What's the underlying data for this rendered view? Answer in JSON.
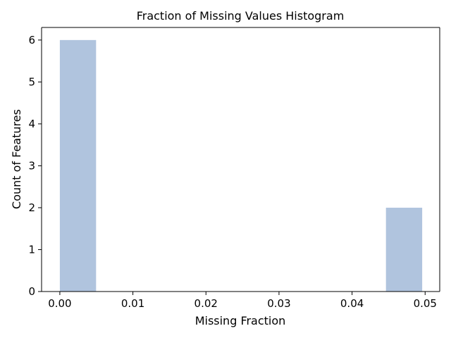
{
  "chart_data": {
    "type": "bar",
    "title": "Fraction of Missing Values Histogram",
    "xlabel": "Missing Fraction",
    "ylabel": "Count of Features",
    "xlim": [
      -0.0025,
      0.052
    ],
    "ylim": [
      0,
      6.3
    ],
    "xticks": [
      "0.00",
      "0.01",
      "0.02",
      "0.03",
      "0.04",
      "0.05"
    ],
    "xtick_values": [
      0.0,
      0.01,
      0.02,
      0.03,
      0.04,
      0.05
    ],
    "yticks": [
      "0",
      "1",
      "2",
      "3",
      "4",
      "5",
      "6"
    ],
    "ytick_values": [
      0,
      1,
      2,
      3,
      4,
      5,
      6
    ],
    "bins": [
      {
        "x0": 0.0,
        "x1": 0.00496,
        "count": 6
      },
      {
        "x0": 0.00496,
        "x1": 0.00992,
        "count": 0
      },
      {
        "x0": 0.00992,
        "x1": 0.01488,
        "count": 0
      },
      {
        "x0": 0.01488,
        "x1": 0.01984,
        "count": 0
      },
      {
        "x0": 0.01984,
        "x1": 0.0248,
        "count": 0
      },
      {
        "x0": 0.0248,
        "x1": 0.02976,
        "count": 0
      },
      {
        "x0": 0.02976,
        "x1": 0.03472,
        "count": 0
      },
      {
        "x0": 0.03472,
        "x1": 0.03968,
        "count": 0
      },
      {
        "x0": 0.03968,
        "x1": 0.04464,
        "count": 0
      },
      {
        "x0": 0.04464,
        "x1": 0.0496,
        "count": 2
      }
    ],
    "bar_color": "#b0c4de",
    "grid": false,
    "legend": "none"
  }
}
